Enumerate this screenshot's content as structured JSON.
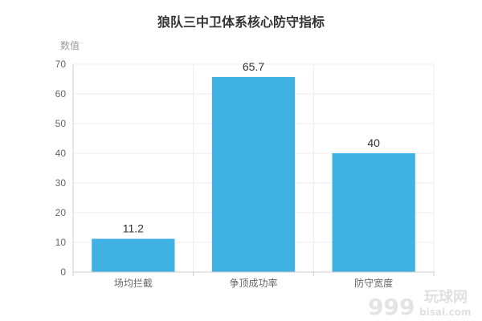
{
  "chart_data": {
    "type": "bar",
    "title": "狼队三中卫体系核心防守指标",
    "ylabel": "数值",
    "xlabel": "",
    "categories": [
      "场均拦截",
      "争顶成功率",
      "防守宽度"
    ],
    "values": [
      11.2,
      65.7,
      40
    ],
    "data_labels": [
      "11.2",
      "65.7",
      "40"
    ],
    "ylim": [
      0,
      70
    ],
    "yticks": [
      "0",
      "10",
      "20",
      "30",
      "40",
      "50",
      "60",
      "70"
    ],
    "grid": true,
    "legend": "none",
    "colors": {
      "bar": "#3fb1e3",
      "grid": "#ececec",
      "axis": "#cccccc"
    }
  },
  "watermark": {
    "site": "玩球网",
    "domain": "bisai.com",
    "number": "999"
  }
}
